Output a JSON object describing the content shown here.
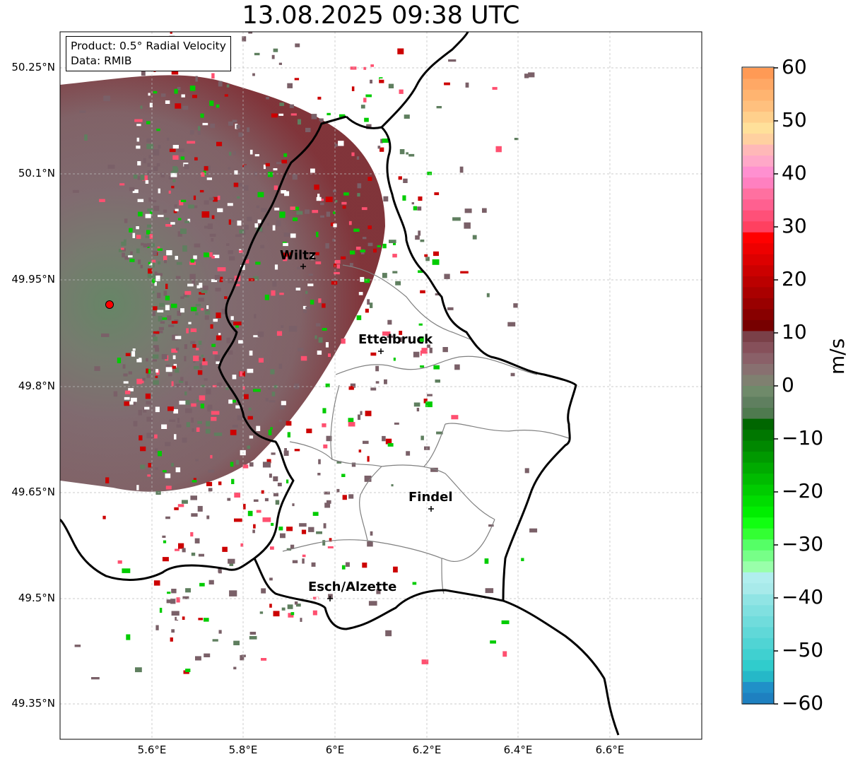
{
  "title": "13.08.2025 09:38 UTC",
  "info_box": {
    "line1": "Product: 0.5° Radial Velocity",
    "line2": "Data: RMIB"
  },
  "map": {
    "lat_labels": [
      "50.25°N",
      "50.1°N",
      "49.95°N",
      "49.8°N",
      "49.65°N",
      "49.5°N",
      "49.35°N"
    ],
    "lon_labels": [
      "5.6°E",
      "5.8°E",
      "6°E",
      "6.2°E",
      "6.4°E",
      "6.6°E"
    ],
    "gridlines": true,
    "radar_site_color": "#ff0000",
    "cities": [
      {
        "name": "Wiltz"
      },
      {
        "name": "Ettelbruck"
      },
      {
        "name": "Findel"
      },
      {
        "name": "Esch/Alzette"
      }
    ]
  },
  "colorbar": {
    "unit": "m/s",
    "min": -60,
    "max": 60,
    "tick_labels": [
      "60",
      "50",
      "40",
      "30",
      "20",
      "10",
      "0",
      "−10",
      "−20",
      "−30",
      "−40",
      "−50",
      "−60"
    ]
  },
  "colors": {
    "near_zero_positive": "#7a6068",
    "near_zero_negative": "#5f7f5f",
    "strong_negative": "#00cc00",
    "strong_positive": "#cc0000",
    "pink": "#ff5070",
    "border": "#000000",
    "canton_lines": "#808080"
  }
}
